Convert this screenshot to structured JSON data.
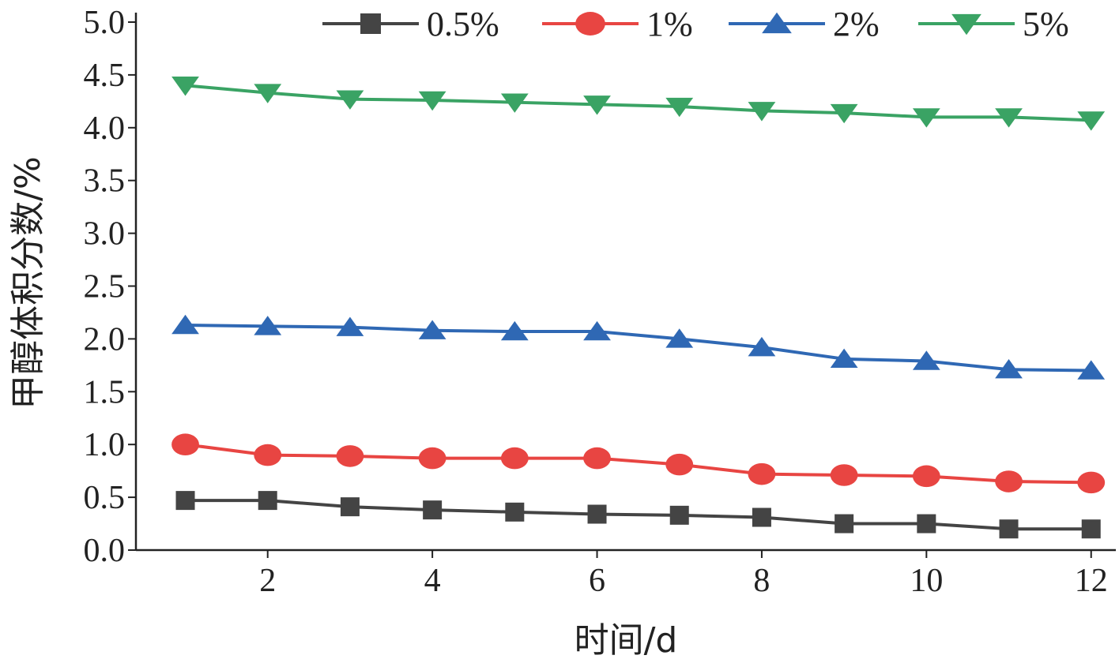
{
  "chart_data": {
    "type": "line",
    "title": "",
    "xlabel": "时间/d",
    "ylabel": "甲醇体积分数/%",
    "xlim": [
      0.4,
      12.3
    ],
    "ylim": [
      0.0,
      5.0
    ],
    "xticks": [
      2,
      4,
      6,
      8,
      10,
      12
    ],
    "xtick_labels": [
      "2",
      "4",
      "6",
      "8",
      "10",
      "12"
    ],
    "yticks": [
      0.0,
      0.5,
      1.0,
      1.5,
      2.0,
      2.5,
      3.0,
      3.5,
      4.0,
      4.5,
      5.0
    ],
    "ytick_labels": [
      "0.0",
      "0.5",
      "1.0",
      "1.5",
      "2.0",
      "2.5",
      "3.0",
      "3.5",
      "4.0",
      "4.5",
      "5.0"
    ],
    "legend_position": "top",
    "x": [
      1,
      2,
      3,
      4,
      5,
      6,
      7,
      8,
      9,
      10,
      11,
      12
    ],
    "series": [
      {
        "name": "0.5%",
        "marker": "square",
        "color": "#444444",
        "values": [
          0.47,
          0.47,
          0.41,
          0.38,
          0.36,
          0.34,
          0.33,
          0.31,
          0.25,
          0.25,
          0.2,
          0.2
        ]
      },
      {
        "name": "1%",
        "marker": "circle",
        "color": "#e84542",
        "values": [
          1.0,
          0.9,
          0.89,
          0.87,
          0.87,
          0.87,
          0.81,
          0.72,
          0.71,
          0.7,
          0.65,
          0.64
        ]
      },
      {
        "name": "2%",
        "marker": "triangle-up",
        "color": "#2f68b4",
        "values": [
          2.13,
          2.12,
          2.11,
          2.08,
          2.07,
          2.07,
          2.0,
          1.92,
          1.81,
          1.79,
          1.71,
          1.7
        ]
      },
      {
        "name": "5%",
        "marker": "triangle-down",
        "color": "#3aa364",
        "values": [
          4.4,
          4.33,
          4.27,
          4.26,
          4.24,
          4.22,
          4.2,
          4.16,
          4.14,
          4.1,
          4.1,
          4.07
        ]
      }
    ]
  }
}
